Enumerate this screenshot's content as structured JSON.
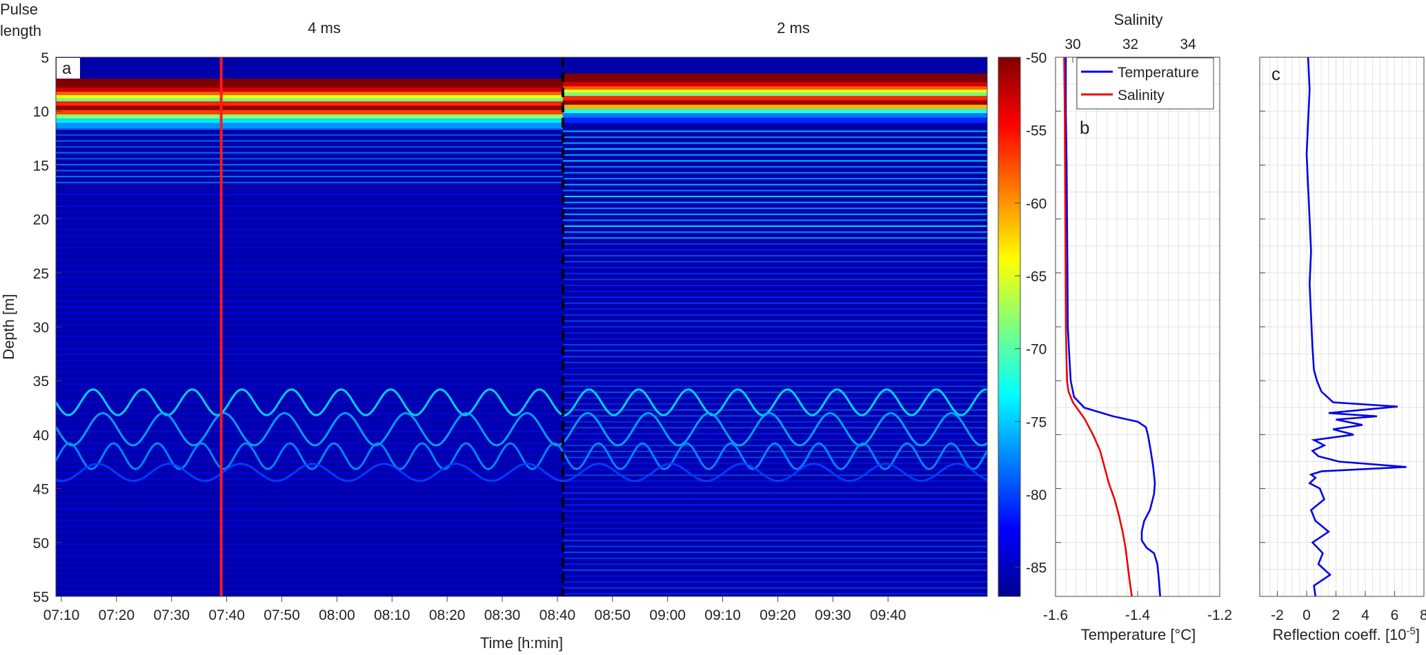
{
  "header": {
    "pulse_label_line1": "Pulse",
    "pulse_label_line2": "length",
    "pulse_4ms": "4 ms",
    "pulse_2ms": "2 ms"
  },
  "chart_data": [
    {
      "id": "a",
      "panel_letter": "a",
      "type": "heatmap",
      "xlabel": "Time [h:min]",
      "ylabel": "Depth [m]",
      "xticks": [
        "07:10",
        "07:20",
        "07:30",
        "07:40",
        "07:50",
        "08:00",
        "08:10",
        "08:20",
        "08:30",
        "08:40",
        "08:50",
        "09:00",
        "09:10",
        "09:20",
        "09:30",
        "09:40"
      ],
      "xrange_minutes_after_07_00": [
        9,
        178
      ],
      "ylim": [
        5,
        55
      ],
      "yticks": [
        5,
        10,
        15,
        20,
        25,
        30,
        35,
        40,
        45,
        50,
        55
      ],
      "colorbar": {
        "ticks": [
          -50,
          -55,
          -60,
          -65,
          -70,
          -75,
          -80,
          -85
        ],
        "range": [
          -87,
          -50
        ],
        "colormap": "jet"
      },
      "red_marker_time": "07:39",
      "pulse_change_time": "08:41",
      "scattering_layer_depth_range": [
        35,
        44
      ]
    },
    {
      "id": "b",
      "panel_letter": "b",
      "type": "line",
      "xlabel": "Temperature [°C]",
      "x2label": "Salinity",
      "xlim_temperature": [
        -1.6,
        -1.2
      ],
      "xticks_temperature": [
        "-1.6",
        "-1.4",
        "-1.2"
      ],
      "xlim_salinity": [
        29.4,
        35.1
      ],
      "xticks_salinity": [
        "30",
        "32",
        "34"
      ],
      "ylim": [
        5,
        55
      ],
      "grid": true,
      "legend": "top-right",
      "series": [
        {
          "name": "Temperature",
          "color": "#0000ee",
          "depth": [
            5,
            10,
            15,
            20,
            25,
            30,
            33,
            35,
            36.5,
            37.5,
            38.3,
            38.8,
            39.3,
            40,
            41.5,
            43,
            44.5,
            45.5,
            47,
            48,
            49,
            49.8,
            50.5,
            51,
            52,
            53.5,
            55
          ],
          "values": [
            -1.575,
            -1.575,
            -1.573,
            -1.572,
            -1.571,
            -1.57,
            -1.566,
            -1.563,
            -1.555,
            -1.53,
            -1.46,
            -1.4,
            -1.38,
            -1.375,
            -1.368,
            -1.362,
            -1.358,
            -1.36,
            -1.37,
            -1.384,
            -1.39,
            -1.39,
            -1.378,
            -1.36,
            -1.352,
            -1.348,
            -1.345
          ]
        },
        {
          "name": "Salinity",
          "color": "#ee0000",
          "depth": [
            5,
            10,
            15,
            20,
            25,
            30,
            33,
            35,
            36,
            37,
            38.5,
            40,
            41.5,
            43,
            44.5,
            46,
            47.5,
            49,
            50.5,
            52,
            53.5,
            55
          ],
          "values": [
            29.7,
            29.72,
            29.73,
            29.74,
            29.75,
            29.76,
            29.78,
            29.8,
            29.85,
            30.0,
            30.4,
            30.7,
            30.95,
            31.1,
            31.25,
            31.45,
            31.6,
            31.73,
            31.83,
            31.9,
            31.97,
            32.05
          ]
        }
      ]
    },
    {
      "id": "c",
      "panel_letter": "c",
      "type": "line",
      "xlabel_prefix": "Reflection coeff. [10",
      "xlabel_exponent": "-5",
      "xlabel_suffix": "]",
      "xlim": [
        -3.2,
        8
      ],
      "xticks": [
        "-2",
        "0",
        "2",
        "4",
        "6",
        "8"
      ],
      "ylim": [
        5,
        55
      ],
      "grid": true,
      "series": [
        {
          "name": "",
          "color": "#0000ee",
          "depth": [
            5,
            8,
            11,
            14,
            17,
            20,
            23,
            26,
            29,
            32,
            34,
            35,
            36,
            37,
            37.4,
            38,
            38.3,
            38.6,
            39.1,
            39.5,
            40,
            40.5,
            41,
            41.5,
            42,
            42.5,
            43,
            43.4,
            43.7,
            44,
            44.5,
            45,
            46,
            47,
            48,
            49,
            50,
            51,
            52,
            53,
            54,
            55
          ],
          "values": [
            0.1,
            0.2,
            0.1,
            0.0,
            0.1,
            0.2,
            0.3,
            0.2,
            0.3,
            0.4,
            0.5,
            0.7,
            1.0,
            1.8,
            6.2,
            1.5,
            4.8,
            2.0,
            3.8,
            1.8,
            3.2,
            0.5,
            1.2,
            0.4,
            0.8,
            2.2,
            6.8,
            1.0,
            0.3,
            0.6,
            0.2,
            0.9,
            1.2,
            0.3,
            0.6,
            1.5,
            0.4,
            1.1,
            0.8,
            1.6,
            0.5,
            0.6
          ]
        }
      ]
    }
  ]
}
